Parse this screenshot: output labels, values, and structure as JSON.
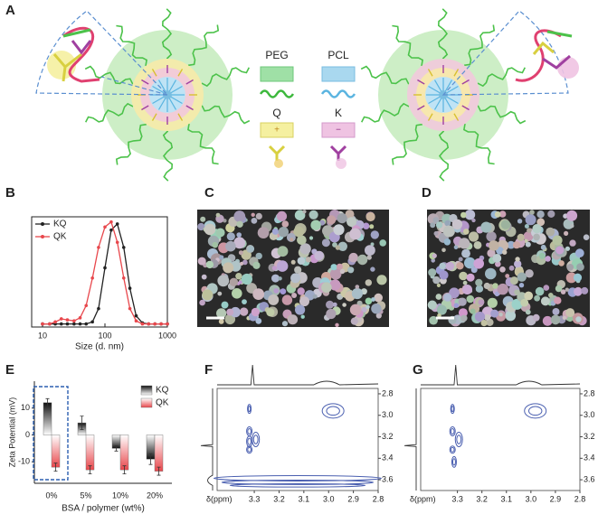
{
  "panel_labels": [
    "A",
    "B",
    "C",
    "D",
    "E",
    "F",
    "G"
  ],
  "legend": {
    "peg": "PEG",
    "pcl": "PCL",
    "q": "Q",
    "k": "K",
    "q_sign": "+",
    "k_sign": "−"
  },
  "chart_data": [
    {
      "type": "line",
      "xlabel": "Size (d. nm)",
      "xlog": true,
      "x": [
        10,
        13,
        16,
        20,
        25,
        32,
        40,
        50,
        63,
        79,
        100,
        126,
        158,
        200,
        251,
        316,
        398,
        501,
        631,
        794,
        1000
      ],
      "xlim": [
        6.7,
        1000
      ],
      "xticks": [
        10,
        100,
        1000
      ],
      "ylim": [
        -3,
        105
      ],
      "series": [
        {
          "name": "KQ",
          "color": "#222222",
          "values": [
            0,
            0,
            0,
            0,
            0,
            0,
            0,
            0,
            2,
            15,
            55,
            92,
            98,
            75,
            35,
            8,
            1,
            0,
            0,
            0,
            0
          ]
        },
        {
          "name": "QK",
          "color": "#e8474c",
          "values": [
            0,
            0,
            2,
            5,
            4,
            3,
            6,
            18,
            45,
            75,
            95,
            100,
            80,
            45,
            15,
            3,
            0,
            0,
            0,
            0,
            0
          ]
        }
      ]
    },
    {
      "type": "bar",
      "ylabel": "Zeta Potential (mV)",
      "xlabel": "BSA / polymer (wt%)",
      "categories": [
        "0%",
        "5%",
        "10%",
        "20%"
      ],
      "ylim": [
        -18,
        20
      ],
      "yticks": [
        10,
        0,
        -10
      ],
      "series": [
        {
          "name": "KQ",
          "color": "#111111",
          "values": [
            12,
            4.5,
            -5,
            -9
          ],
          "errors": [
            1.5,
            2.5,
            1,
            2
          ]
        },
        {
          "name": "QK",
          "color": "#e8474c",
          "values": [
            -12,
            -13,
            -13,
            -13.5
          ],
          "errors": [
            1.5,
            1.5,
            1.5,
            1.5
          ]
        }
      ]
    },
    {
      "type": "nmr",
      "xlabel": "δ(ppm)",
      "xlim": [
        3.45,
        2.8
      ],
      "ylim": [
        2.75,
        3.7
      ],
      "color": "#4a5fb0",
      "xticks": [
        3.3,
        3.2,
        3.1,
        {
          "value": 3.0,
          "label": "3.0"
        },
        2.9,
        2.8
      ],
      "yticks": [
        2.8,
        {
          "value": 3.0,
          "label": "3.0"
        },
        3.2,
        3.4,
        3.6
      ]
    },
    {
      "type": "nmr",
      "xlabel": "δ(ppm)",
      "xlim": [
        3.45,
        2.8
      ],
      "ylim": [
        2.75,
        3.7
      ],
      "color": "#4a5fb0",
      "xticks": [
        3.3,
        3.2,
        3.1,
        {
          "value": 3.0,
          "label": "3.0"
        },
        2.9,
        2.8
      ],
      "yticks": [
        2.8,
        {
          "value": 3.0,
          "label": "3.0"
        },
        3.2,
        3.4,
        3.6
      ]
    }
  ]
}
